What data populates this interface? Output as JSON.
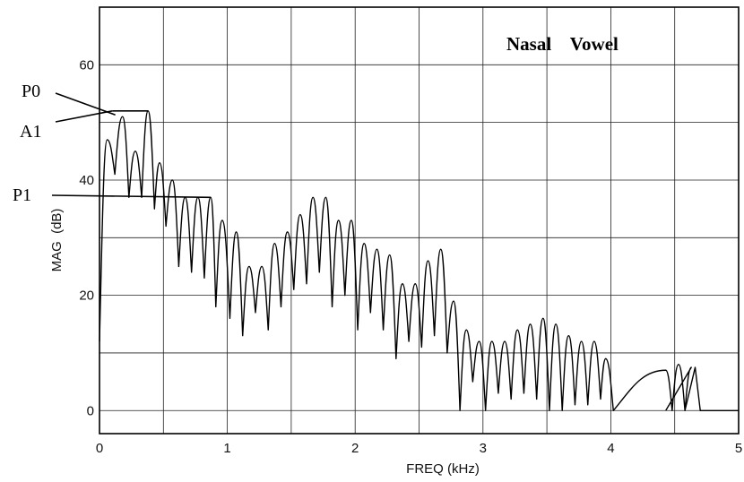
{
  "chart_data": {
    "type": "line",
    "title": "Nasal    Vowel",
    "xlabel": "FREQ (kHz)",
    "ylabel": "MAG  (dB)",
    "xlim": [
      0,
      5
    ],
    "ylim": [
      -4,
      70
    ],
    "xticks": [
      0,
      1,
      2,
      3,
      4,
      5
    ],
    "yticks": [
      0,
      20,
      40,
      60
    ],
    "grid": true,
    "x_gridlines": [
      0.5,
      1,
      1.5,
      2,
      2.5,
      3,
      3.5,
      4,
      4.5
    ],
    "y_gridlines": [
      0,
      10,
      20,
      30,
      40,
      50,
      60
    ],
    "harmonic_spacing_khz": 0.1,
    "series": [
      {
        "peaks": [
          [
            0.06,
            47
          ],
          [
            0.18,
            51
          ],
          [
            0.28,
            45
          ],
          [
            0.38,
            52
          ],
          [
            0.47,
            43
          ],
          [
            0.57,
            40
          ],
          [
            0.67,
            37
          ],
          [
            0.77,
            37
          ],
          [
            0.87,
            37
          ],
          [
            0.96,
            33
          ],
          [
            1.07,
            31
          ],
          [
            1.17,
            25
          ],
          [
            1.27,
            25
          ],
          [
            1.37,
            29
          ],
          [
            1.47,
            31
          ],
          [
            1.57,
            34
          ],
          [
            1.67,
            37
          ],
          [
            1.77,
            37
          ],
          [
            1.87,
            33
          ],
          [
            1.97,
            33
          ],
          [
            2.07,
            29
          ],
          [
            2.17,
            28
          ],
          [
            2.27,
            27
          ],
          [
            2.37,
            22
          ],
          [
            2.47,
            22
          ],
          [
            2.57,
            26
          ],
          [
            2.67,
            28
          ],
          [
            2.77,
            19
          ],
          [
            2.87,
            14
          ],
          [
            2.97,
            12
          ],
          [
            3.07,
            12
          ],
          [
            3.17,
            12
          ],
          [
            3.27,
            14
          ],
          [
            3.37,
            15
          ],
          [
            3.47,
            16
          ],
          [
            3.57,
            15
          ],
          [
            3.67,
            13
          ],
          [
            3.77,
            12
          ],
          [
            3.87,
            12
          ],
          [
            3.96,
            9
          ],
          [
            4.43,
            7
          ],
          [
            4.53,
            8
          ],
          [
            4.63,
            7.5
          ]
        ],
        "valleys": [
          [
            0.0,
            12
          ],
          [
            0.12,
            41
          ],
          [
            0.23,
            37
          ],
          [
            0.33,
            37
          ],
          [
            0.43,
            35
          ],
          [
            0.52,
            32
          ],
          [
            0.62,
            25
          ],
          [
            0.72,
            24
          ],
          [
            0.82,
            23
          ],
          [
            0.91,
            18
          ],
          [
            1.02,
            16
          ],
          [
            1.12,
            13
          ],
          [
            1.22,
            17
          ],
          [
            1.32,
            14
          ],
          [
            1.42,
            18
          ],
          [
            1.52,
            21
          ],
          [
            1.62,
            22
          ],
          [
            1.72,
            24
          ],
          [
            1.82,
            18
          ],
          [
            1.92,
            20
          ],
          [
            2.02,
            14
          ],
          [
            2.12,
            17
          ],
          [
            2.22,
            14
          ],
          [
            2.32,
            9
          ],
          [
            2.42,
            12
          ],
          [
            2.52,
            11
          ],
          [
            2.62,
            13
          ],
          [
            2.72,
            10
          ],
          [
            2.82,
            0
          ],
          [
            2.92,
            5
          ],
          [
            3.02,
            0
          ],
          [
            3.12,
            3
          ],
          [
            3.22,
            2
          ],
          [
            3.32,
            3
          ],
          [
            3.42,
            2
          ],
          [
            3.52,
            0
          ],
          [
            3.62,
            0
          ],
          [
            3.72,
            1
          ],
          [
            3.82,
            1
          ],
          [
            3.92,
            2
          ],
          [
            4.02,
            0
          ],
          [
            4.48,
            0
          ],
          [
            4.58,
            0
          ]
        ]
      }
    ],
    "annotations": [
      {
        "text": "P0",
        "x": 0.18,
        "y": 51
      },
      {
        "text": "A1",
        "x": 0.38,
        "y": 52
      },
      {
        "text": "P1",
        "x": 0.87,
        "y": 37
      }
    ]
  }
}
